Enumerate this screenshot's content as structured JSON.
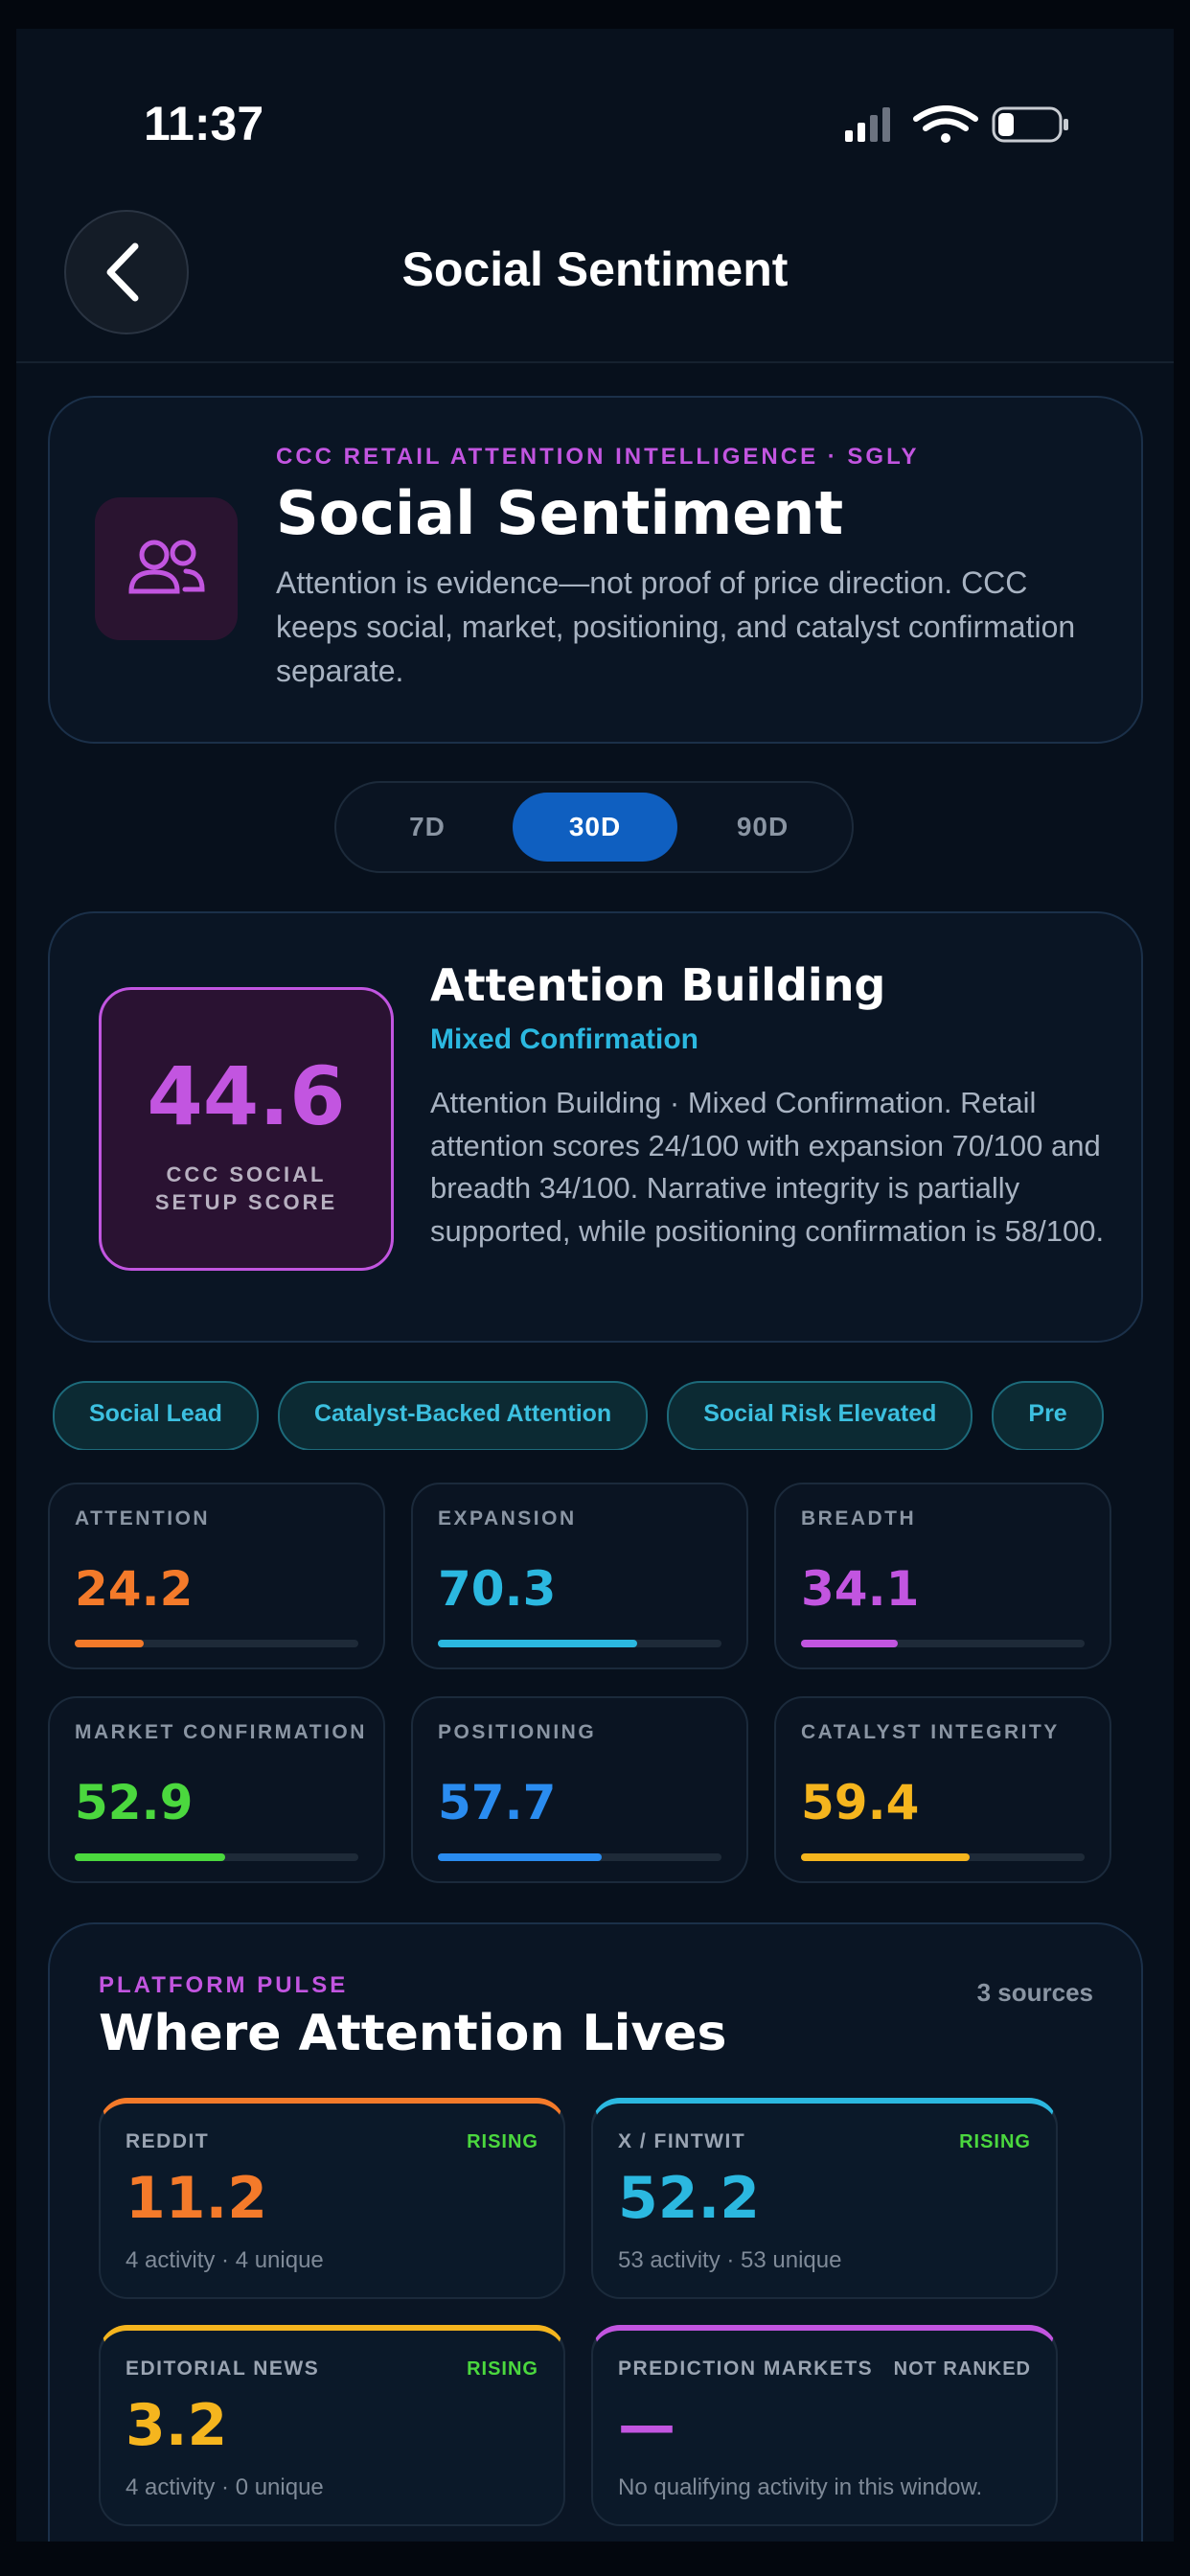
{
  "status_bar": {
    "time": "11:37"
  },
  "header": {
    "title": "Social Sentiment"
  },
  "hero": {
    "eyebrow": "CCC RETAIL ATTENTION INTELLIGENCE · SGLY",
    "title": "Social Sentiment",
    "description": "Attention is evidence—not proof of price direction. CCC keeps social, market, positioning, and catalyst confirmation separate."
  },
  "range_tabs": {
    "options": [
      "7D",
      "30D",
      "90D"
    ],
    "selected_index": 1
  },
  "score": {
    "value": 44.6,
    "label": "CCC SOCIAL SETUP SCORE",
    "title": "Attention Building",
    "subtitle": "Mixed Confirmation",
    "description": "Attention Building · Mixed Confirmation. Retail attention scores 24/100 with expansion 70/100 and breadth 34/100. Narrative integrity is partially supported, while positioning confirmation is 58/100."
  },
  "tags": [
    "Social Lead",
    "Catalyst-Backed Attention",
    "Social Risk Elevated",
    "Pre"
  ],
  "metrics": [
    {
      "label": "ATTENTION",
      "value": 24.2,
      "color": "#f47a2a"
    },
    {
      "label": "EXPANSION",
      "value": 70.3,
      "color": "#2bb8e0"
    },
    {
      "label": "BREADTH",
      "value": 34.1,
      "color": "#c255e0"
    },
    {
      "label": "MARKET CONFIRMATION",
      "value": 52.9,
      "color": "#4bd83e"
    },
    {
      "label": "POSITIONING",
      "value": 57.7,
      "color": "#2a8cf0"
    },
    {
      "label": "CATALYST INTEGRITY",
      "value": 59.4,
      "color": "#f5b51e"
    }
  ],
  "platform": {
    "eyebrow": "PLATFORM PULSE",
    "title": "Where Attention Lives",
    "sources": "3 sources",
    "cards": [
      {
        "name": "REDDIT",
        "status": "RISING",
        "status_color": "#4bd83e",
        "value": 11.2,
        "detail": "4 activity · 4 unique",
        "color": "#f47a2a"
      },
      {
        "name": "X / FINTWIT",
        "status": "RISING",
        "status_color": "#4bd83e",
        "value": 52.2,
        "detail": "53 activity · 53 unique",
        "color": "#2bb8e0"
      },
      {
        "name": "EDITORIAL NEWS",
        "status": "RISING",
        "status_color": "#4bd83e",
        "value": 3.2,
        "detail": "4 activity · 0 unique",
        "color": "#f5b51e"
      },
      {
        "name": "PREDICTION MARKETS",
        "status": "NOT RANKED",
        "status_color": "#9aa4b2",
        "value": "—",
        "detail": "No qualifying activity in this window.",
        "color": "#c255e0"
      }
    ]
  }
}
